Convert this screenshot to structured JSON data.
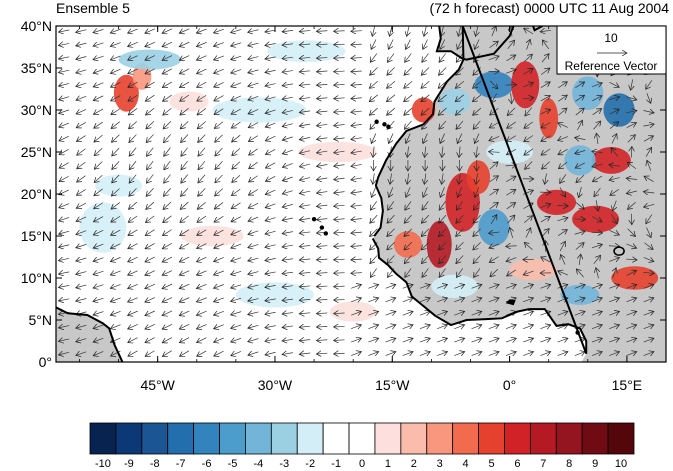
{
  "title_left": "Ensemble 5",
  "title_right": "(72 h forecast) 0000 UTC 11 Aug 2004",
  "map": {
    "lon_range": [
      -58,
      20
    ],
    "lat_range": [
      0,
      40
    ],
    "lat_ticks": [
      {
        "lat": 40,
        "label": "40°N"
      },
      {
        "lat": 35,
        "label": "35°N"
      },
      {
        "lat": 30,
        "label": "30°N"
      },
      {
        "lat": 25,
        "label": "25°N"
      },
      {
        "lat": 20,
        "label": "20°N"
      },
      {
        "lat": 15,
        "label": "15°N"
      },
      {
        "lat": 10,
        "label": "10°N"
      },
      {
        "lat": 5,
        "label": "5°N"
      },
      {
        "lat": 0,
        "label": "0°"
      }
    ],
    "lon_ticks": [
      {
        "lon": -45,
        "label": "45°W"
      },
      {
        "lon": -30,
        "label": "30°W"
      },
      {
        "lon": -15,
        "label": "15°W"
      },
      {
        "lon": 0,
        "label": "0°"
      },
      {
        "lon": 15,
        "label": "15°E"
      }
    ],
    "land_color": "#c8c8c8"
  },
  "reference_vector": {
    "magnitude_label": "10",
    "label": "Reference Vector"
  },
  "colorbar": {
    "labels": [
      "-10",
      "-9",
      "-8",
      "-7",
      "-6",
      "-5",
      "-4",
      "-3",
      "-2",
      "-1",
      "0",
      "1",
      "2",
      "3",
      "4",
      "5",
      "6",
      "7",
      "8",
      "9",
      "10"
    ],
    "colors": [
      "#08234f",
      "#0c3877",
      "#1b5593",
      "#236fad",
      "#3283be",
      "#4c9ccc",
      "#72b5d9",
      "#9bd0e3",
      "#d4eef7",
      "#ffffff",
      "#ffffff",
      "#fde0dd",
      "#fbbcac",
      "#f8977e",
      "#f36b4f",
      "#e6402e",
      "#d12227",
      "#b51a24",
      "#941420",
      "#700b14",
      "#55060b"
    ]
  },
  "anomaly_blobs": [
    {
      "lon": -49,
      "lat": 32,
      "rx": 1.6,
      "ry": 2.2,
      "color": "#e6402e"
    },
    {
      "lon": -47,
      "lat": 34,
      "rx": 1.2,
      "ry": 1.6,
      "color": "#f8977e"
    },
    {
      "lon": -41,
      "lat": 31,
      "rx": 2.5,
      "ry": 1.2,
      "color": "#fde0dd"
    },
    {
      "lon": -50,
      "lat": 21,
      "rx": 3,
      "ry": 1.3,
      "color": "#d4eef7"
    },
    {
      "lon": -46,
      "lat": 36,
      "rx": 4,
      "ry": 1.2,
      "color": "#9bd0e3"
    },
    {
      "lon": -32,
      "lat": 30,
      "rx": 6,
      "ry": 1.5,
      "color": "#d4eef7"
    },
    {
      "lon": -26,
      "lat": 37,
      "rx": 5,
      "ry": 1.3,
      "color": "#d4eef7"
    },
    {
      "lon": -22,
      "lat": 25,
      "rx": 5,
      "ry": 1.2,
      "color": "#fde0dd"
    },
    {
      "lon": -38,
      "lat": 15,
      "rx": 4,
      "ry": 1.2,
      "color": "#fde0dd"
    },
    {
      "lon": -52,
      "lat": 16,
      "rx": 3,
      "ry": 3,
      "color": "#d4eef7"
    },
    {
      "lon": -30,
      "lat": 8,
      "rx": 5,
      "ry": 1.5,
      "color": "#d4eef7"
    },
    {
      "lon": -20,
      "lat": 6,
      "rx": 3,
      "ry": 1.2,
      "color": "#fde0dd"
    },
    {
      "lon": -11,
      "lat": 30,
      "rx": 1.5,
      "ry": 1.5,
      "color": "#e6402e"
    },
    {
      "lon": -7,
      "lat": 31,
      "rx": 2,
      "ry": 1.6,
      "color": "#9bd0e3"
    },
    {
      "lon": -2,
      "lat": 33,
      "rx": 2.5,
      "ry": 1.6,
      "color": "#3283be"
    },
    {
      "lon": 2,
      "lat": 33,
      "rx": 1.8,
      "ry": 2.8,
      "color": "#d12227"
    },
    {
      "lon": 5,
      "lat": 29,
      "rx": 1.2,
      "ry": 2.4,
      "color": "#e6402e"
    },
    {
      "lon": 10,
      "lat": 32,
      "rx": 2,
      "ry": 2,
      "color": "#72b5d9"
    },
    {
      "lon": 14,
      "lat": 30,
      "rx": 2,
      "ry": 2,
      "color": "#236fad"
    },
    {
      "lon": 13,
      "lat": 24,
      "rx": 2.5,
      "ry": 1.6,
      "color": "#d12227"
    },
    {
      "lon": 9,
      "lat": 24,
      "rx": 2,
      "ry": 1.8,
      "color": "#72b5d9"
    },
    {
      "lon": -6,
      "lat": 19,
      "rx": 2.2,
      "ry": 3.5,
      "color": "#d12227"
    },
    {
      "lon": -9,
      "lat": 14,
      "rx": 1.6,
      "ry": 2.8,
      "color": "#b51a24"
    },
    {
      "lon": -13,
      "lat": 14,
      "rx": 1.8,
      "ry": 1.6,
      "color": "#f36b4f"
    },
    {
      "lon": -4,
      "lat": 22,
      "rx": 1.5,
      "ry": 2,
      "color": "#e6402e"
    },
    {
      "lon": -2,
      "lat": 16,
      "rx": 2,
      "ry": 2.2,
      "color": "#4c9ccc"
    },
    {
      "lon": 6,
      "lat": 19,
      "rx": 2.5,
      "ry": 1.5,
      "color": "#d12227"
    },
    {
      "lon": 11,
      "lat": 17,
      "rx": 3,
      "ry": 1.6,
      "color": "#d12227"
    },
    {
      "lon": 16,
      "lat": 10,
      "rx": 3,
      "ry": 1.4,
      "color": "#e6402e"
    },
    {
      "lon": 9,
      "lat": 8,
      "rx": 2.5,
      "ry": 1.2,
      "color": "#72b5d9"
    },
    {
      "lon": -7,
      "lat": 9,
      "rx": 3,
      "ry": 1.4,
      "color": "#d4eef7"
    },
    {
      "lon": 3,
      "lat": 11,
      "rx": 3,
      "ry": 1.3,
      "color": "#fbbcac"
    },
    {
      "lon": 0,
      "lat": 25,
      "rx": 3,
      "ry": 1.4,
      "color": "#d4eef7"
    }
  ]
}
